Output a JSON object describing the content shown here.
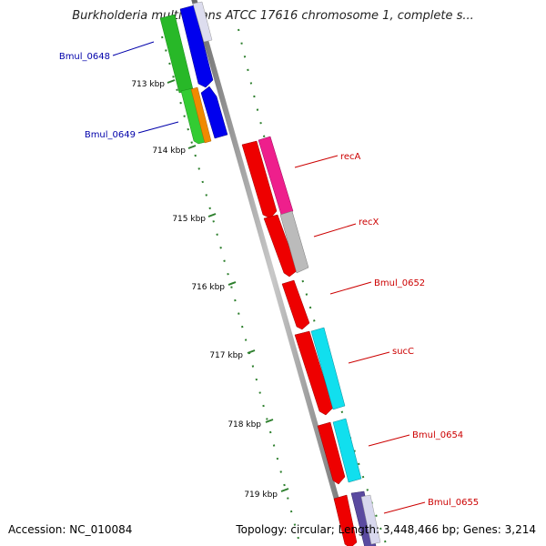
{
  "title": "Burkholderia multivorans ATCC 17616 chromosome 1, complete s...",
  "accession": "Accession: NC_010084",
  "summary": "Topology: circular; Length: 3,448,466 bp; Genes: 3,214",
  "colors": {
    "backbone": "#909090",
    "ticks": "#2d7f2d",
    "label_blue": "#0000aa",
    "label_red": "#cc0000"
  },
  "ruler_ticks": [
    "713 kbp",
    "714 kbp",
    "715 kbp",
    "716 kbp",
    "717 kbp",
    "718 kbp",
    "719 kbp"
  ],
  "genes": [
    {
      "name": "Bmul_0648",
      "color": "#0000aa"
    },
    {
      "name": "Bmul_0649",
      "color": "#0000aa"
    },
    {
      "name": "recA",
      "color": "#cc0000"
    },
    {
      "name": "recX",
      "color": "#cc0000"
    },
    {
      "name": "Bmul_0652",
      "color": "#cc0000"
    },
    {
      "name": "sucC",
      "color": "#cc0000"
    },
    {
      "name": "Bmul_0654",
      "color": "#cc0000"
    },
    {
      "name": "Bmul_0655",
      "color": "#cc0000"
    }
  ]
}
